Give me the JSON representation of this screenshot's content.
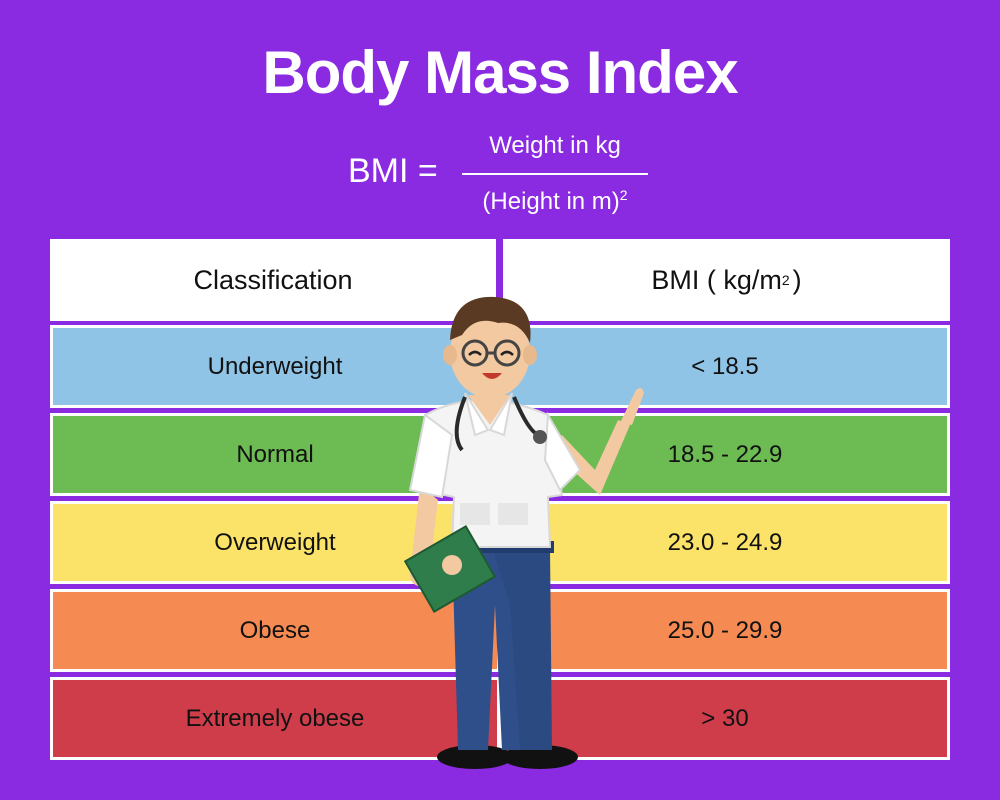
{
  "title": "Body Mass Index",
  "formula": {
    "lhs": "BMI =",
    "numerator": "Weight in kg",
    "denominator": "(Height in m)",
    "exponent": "2"
  },
  "table": {
    "headers": {
      "classification": "Classification",
      "bmi": "BMI ( kg/m",
      "bmi_exponent": "2",
      "bmi_close": ")"
    },
    "rows": [
      {
        "classification": "Underweight",
        "bmi": "< 18.5",
        "color": "#8fc4e6"
      },
      {
        "classification": "Normal",
        "bmi": "18.5 - 22.9",
        "color": "#6cbb53"
      },
      {
        "classification": "Overweight",
        "bmi": "23.0 - 24.9",
        "color": "#fbe36a"
      },
      {
        "classification": "Obese",
        "bmi": "25.0 - 29.9",
        "color": "#f58a52"
      },
      {
        "classification": "Extremely obese",
        "bmi": "> 30",
        "color": "#cf3d4b"
      }
    ]
  },
  "illustration": {
    "name": "doctor-with-clipboard",
    "icon": "doctor-illustration-icon"
  }
}
